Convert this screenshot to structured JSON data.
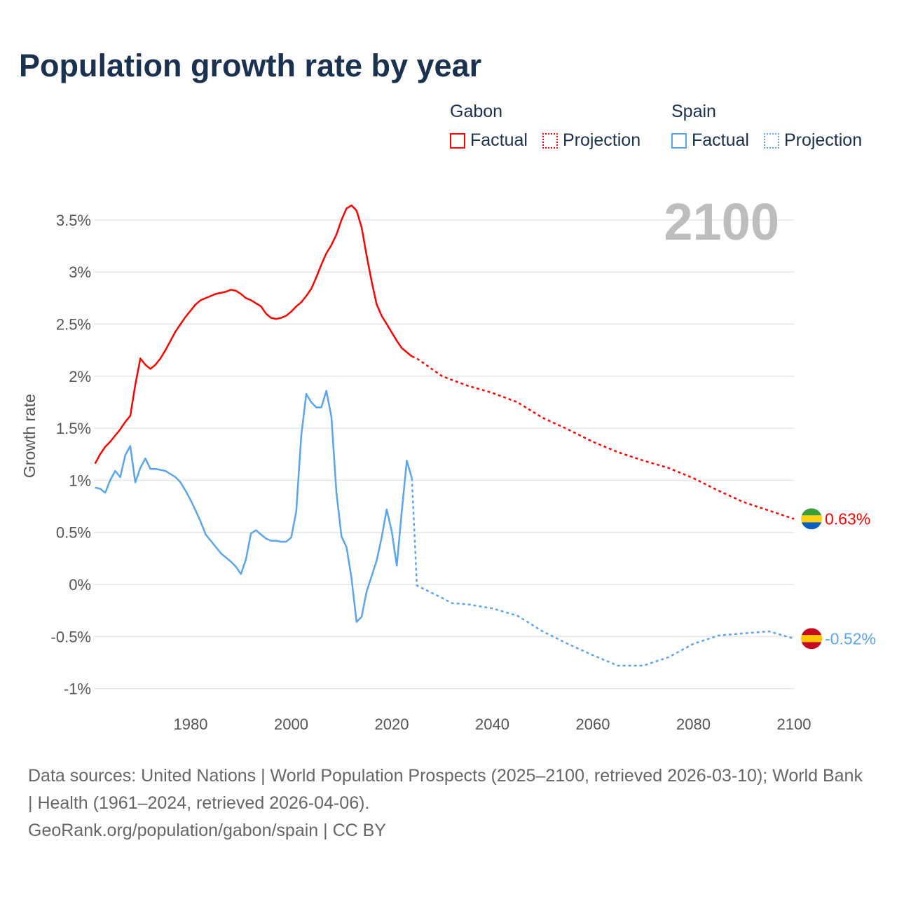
{
  "title": "Population growth rate by year",
  "legend": {
    "groups": [
      {
        "name": "Gabon",
        "factual": "Factual",
        "projection": "Projection"
      },
      {
        "name": "Spain",
        "factual": "Factual",
        "projection": "Projection"
      }
    ]
  },
  "year_label": "2100",
  "footer": {
    "sources": "Data sources: United Nations | World Population Prospects (2025–2100, retrieved 2026-03-10); World Bank | Health (1961–2024, retrieved 2026-04-06).",
    "link": "GeoRank.org/population/gabon/spain | CC BY"
  },
  "chart_data": {
    "type": "line",
    "title": "Population growth rate by year",
    "xlabel": "",
    "ylabel": "Growth rate",
    "xlim": [
      1961,
      2100
    ],
    "ylim": [
      -1.1,
      3.7
    ],
    "x_ticks": [
      1980,
      2000,
      2020,
      2040,
      2060,
      2080,
      2100
    ],
    "y_ticks": [
      -1,
      -0.5,
      0,
      0.5,
      1,
      1.5,
      2,
      2.5,
      3,
      3.5
    ],
    "y_tick_labels": [
      "-1%",
      "-0.5%",
      "0%",
      "0.5%",
      "1%",
      "1.5%",
      "2%",
      "2.5%",
      "3%",
      "3.5%"
    ],
    "grid": true,
    "legend_position": "top-right",
    "series": [
      {
        "name": "Gabon",
        "color": "#ff0000",
        "end_label": "0.63%",
        "flag": [
          "#3a9e3a",
          "#fcd116",
          "#0a5fbf"
        ],
        "factual": {
          "x_start": 1961,
          "values": [
            1.16,
            1.25,
            1.32,
            1.37,
            1.43,
            1.49,
            1.56,
            1.62,
            1.92,
            2.17,
            2.11,
            2.07,
            2.11,
            2.17,
            2.25,
            2.34,
            2.43,
            2.5,
            2.57,
            2.63,
            2.69,
            2.73,
            2.75,
            2.77,
            2.79,
            2.8,
            2.81,
            2.83,
            2.82,
            2.79,
            2.75,
            2.73,
            2.7,
            2.67,
            2.6,
            2.56,
            2.55,
            2.56,
            2.58,
            2.62,
            2.67,
            2.71,
            2.77,
            2.84,
            2.95,
            3.07,
            3.18,
            3.26,
            3.36,
            3.5,
            3.61,
            3.64,
            3.59,
            3.43,
            3.16,
            2.91,
            2.69,
            2.58,
            2.5,
            2.42,
            2.34,
            2.27,
            2.23,
            2.19
          ]
        },
        "projection": {
          "x": [
            2024,
            2025,
            2030,
            2035,
            2040,
            2045,
            2050,
            2055,
            2060,
            2065,
            2070,
            2075,
            2080,
            2085,
            2090,
            2095,
            2100
          ],
          "values": [
            2.19,
            2.17,
            2.0,
            1.91,
            1.84,
            1.75,
            1.6,
            1.49,
            1.37,
            1.27,
            1.19,
            1.12,
            1.02,
            0.9,
            0.79,
            0.71,
            0.63
          ]
        }
      },
      {
        "name": "Spain",
        "color": "#5aa5ec",
        "end_label": "-0.52%",
        "flag": [
          "#c60b1e",
          "#ffc400",
          "#c60b1e"
        ],
        "factual": {
          "x_start": 1961,
          "values": [
            0.93,
            0.92,
            0.88,
            1.0,
            1.09,
            1.03,
            1.24,
            1.33,
            0.98,
            1.12,
            1.21,
            1.11,
            1.11,
            1.1,
            1.09,
            1.06,
            1.03,
            0.98,
            0.9,
            0.81,
            0.71,
            0.6,
            0.48,
            0.42,
            0.36,
            0.3,
            0.26,
            0.22,
            0.17,
            0.1,
            0.24,
            0.49,
            0.52,
            0.48,
            0.44,
            0.42,
            0.42,
            0.41,
            0.41,
            0.45,
            0.7,
            1.43,
            1.83,
            1.75,
            1.7,
            1.7,
            1.86,
            1.61,
            0.88,
            0.46,
            0.36,
            0.06,
            -0.36,
            -0.31,
            -0.07,
            0.08,
            0.23,
            0.45,
            0.72,
            0.51,
            0.18,
            0.7,
            1.19,
            1.02
          ]
        },
        "projection": {
          "x": [
            2024,
            2025,
            2030,
            2032,
            2035,
            2040,
            2045,
            2050,
            2055,
            2060,
            2065,
            2070,
            2075,
            2080,
            2085,
            2090,
            2095,
            2100
          ],
          "values": [
            1.02,
            -0.01,
            -0.13,
            -0.18,
            -0.19,
            -0.23,
            -0.3,
            -0.45,
            -0.57,
            -0.68,
            -0.78,
            -0.78,
            -0.7,
            -0.57,
            -0.49,
            -0.47,
            -0.45,
            -0.52
          ]
        }
      }
    ]
  }
}
